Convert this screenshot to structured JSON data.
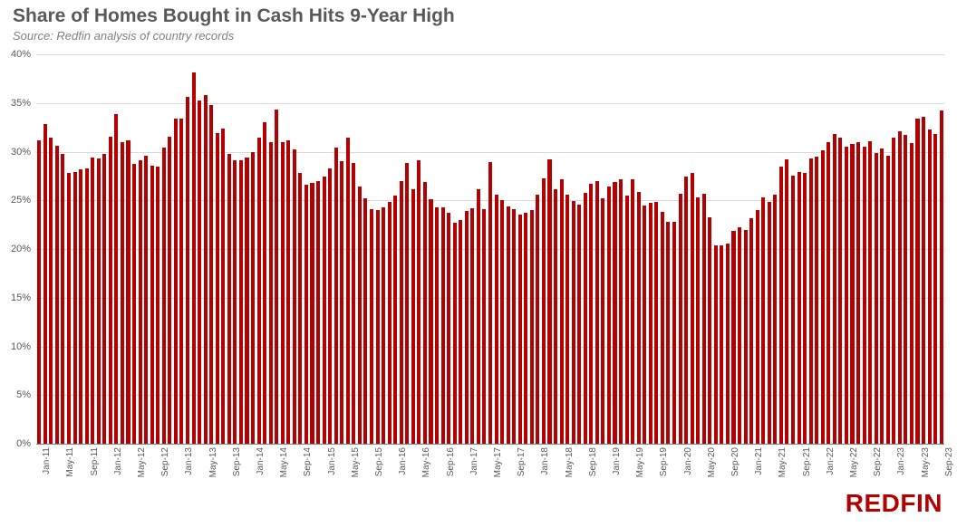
{
  "title": "Share of Homes Bought in Cash Hits 9-Year High",
  "subtitle": "Source: Redfin analysis of country records",
  "logo": "REDFIN",
  "chart": {
    "type": "bar",
    "bar_color": "#b30000",
    "background_color": "#ffffff",
    "grid_color": "#d9d9d9",
    "baseline_color": "#808080",
    "title_color": "#595959",
    "label_color": "#595959",
    "title_fontsize": 21,
    "subtitle_fontsize": 13,
    "axis_fontsize": 11,
    "xlabel_fontsize": 10,
    "ylim": [
      0,
      40
    ],
    "ytick_step": 5,
    "ytick_suffix": "%",
    "bar_width_ratio": 0.62,
    "x_labels": [
      "Jan-11",
      "",
      "",
      "",
      "May-11",
      "",
      "",
      "",
      "Sep-11",
      "",
      "",
      "",
      "Jan-12",
      "",
      "",
      "",
      "May-12",
      "",
      "",
      "",
      "Sep-12",
      "",
      "",
      "",
      "Jan-13",
      "",
      "",
      "",
      "May-13",
      "",
      "",
      "",
      "Sep-13",
      "",
      "",
      "",
      "Jan-14",
      "",
      "",
      "",
      "May-14",
      "",
      "",
      "",
      "Sep-14",
      "",
      "",
      "",
      "Jan-15",
      "",
      "",
      "",
      "May-15",
      "",
      "",
      "",
      "Sep-15",
      "",
      "",
      "",
      "Jan-16",
      "",
      "",
      "",
      "May-16",
      "",
      "",
      "",
      "Sep-16",
      "",
      "",
      "",
      "Jan-17",
      "",
      "",
      "",
      "May-17",
      "",
      "",
      "",
      "Sep-17",
      "",
      "",
      "",
      "Jan-18",
      "",
      "",
      "",
      "May-18",
      "",
      "",
      "",
      "Sep-18",
      "",
      "",
      "",
      "Jan-19",
      "",
      "",
      "",
      "May-19",
      "",
      "",
      "",
      "Sep-19",
      "",
      "",
      "",
      "Jan-20",
      "",
      "",
      "",
      "May-20",
      "",
      "",
      "",
      "Sep-20",
      "",
      "",
      "",
      "Jan-21",
      "",
      "",
      "",
      "May-21",
      "",
      "",
      "",
      "Sep-21",
      "",
      "",
      "",
      "Jan-22",
      "",
      "",
      "",
      "May-22",
      "",
      "",
      "",
      "Sep-22",
      "",
      "",
      "",
      "Jan-23",
      "",
      "",
      "",
      "May-23",
      "",
      "",
      "",
      "Sep-23"
    ],
    "values": [
      31.2,
      32.8,
      31.4,
      30.6,
      29.8,
      27.8,
      27.9,
      28.2,
      28.3,
      29.4,
      29.3,
      29.8,
      31.5,
      33.9,
      31.0,
      31.2,
      28.7,
      29.1,
      29.6,
      28.6,
      28.5,
      30.4,
      31.5,
      33.4,
      33.4,
      35.6,
      38.1,
      35.3,
      35.8,
      34.8,
      31.9,
      32.4,
      29.8,
      29.1,
      29.1,
      29.4,
      30.0,
      31.4,
      33.0,
      31.0,
      34.3,
      31.0,
      31.2,
      30.2,
      27.8,
      26.6,
      26.8,
      27.0,
      27.4,
      28.3,
      30.4,
      29.0,
      31.4,
      28.8,
      26.4,
      25.2,
      24.1,
      24.0,
      24.3,
      24.8,
      25.5,
      27.0,
      28.8,
      26.1,
      29.1,
      26.9,
      25.1,
      24.3,
      24.3,
      23.7,
      22.7,
      23.0,
      23.9,
      24.2,
      26.1,
      24.1,
      28.9,
      25.6,
      25.0,
      24.4,
      24.1,
      23.5,
      23.7,
      24.0,
      25.6,
      27.3,
      29.2,
      26.1,
      27.2,
      25.6,
      24.9,
      24.6,
      25.8,
      26.7,
      27.0,
      25.2,
      26.4,
      26.9,
      27.2,
      25.5,
      27.2,
      25.9,
      24.5,
      24.7,
      24.8,
      23.8,
      22.8,
      22.8,
      25.7,
      27.4,
      27.8,
      25.3,
      25.7,
      23.3,
      20.4,
      20.4,
      20.6,
      21.9,
      22.2,
      22.0,
      23.2,
      24.0,
      25.3,
      24.8,
      25.6,
      28.5,
      29.2,
      27.5,
      27.9,
      27.8,
      29.3,
      29.5,
      30.1,
      31.0,
      31.8,
      31.4,
      30.5,
      30.8,
      31.0,
      30.5,
      31.1,
      29.9,
      30.3,
      29.6,
      31.4,
      32.1,
      31.7,
      30.9,
      33.4,
      33.6,
      32.3,
      31.8,
      34.2
    ]
  }
}
